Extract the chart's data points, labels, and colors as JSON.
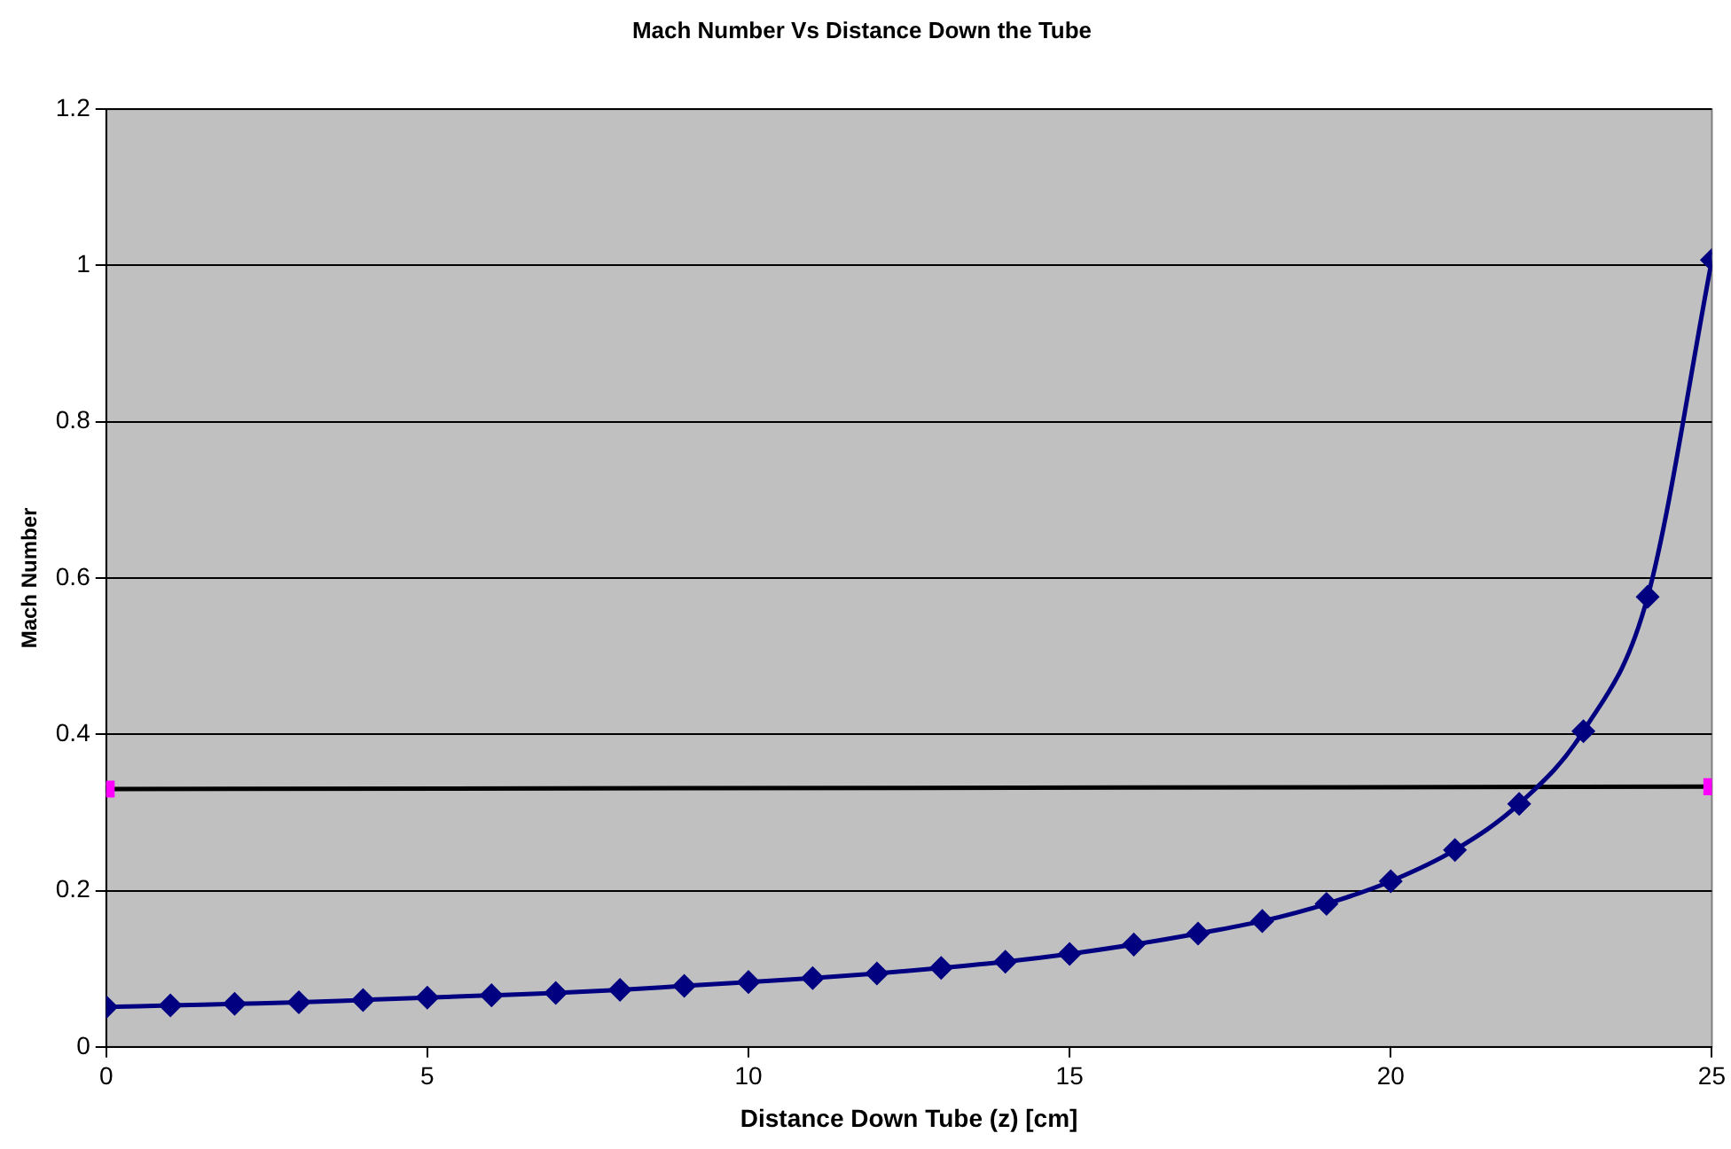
{
  "chart_data": {
    "type": "line",
    "title": "Mach Number Vs Distance Down the Tube",
    "xlabel": "Distance Down Tube (z) [cm]",
    "ylabel": "Mach Number",
    "x": [
      0,
      1,
      2,
      3,
      4,
      5,
      6,
      7,
      8,
      9,
      10,
      11,
      12,
      13,
      14,
      15,
      16,
      17,
      18,
      19,
      20,
      21,
      22,
      23,
      24,
      25
    ],
    "series": [
      {
        "color": "#000080",
        "marker": "diamond",
        "values": [
          0.051,
          0.053,
          0.055,
          0.057,
          0.06,
          0.063,
          0.066,
          0.069,
          0.073,
          0.078,
          0.083,
          0.088,
          0.094,
          0.101,
          0.109,
          0.119,
          0.131,
          0.145,
          0.161,
          0.183,
          0.212,
          0.252,
          0.311,
          0.404,
          0.576,
          1.007
        ]
      },
      {
        "type": "line",
        "x": [
          0,
          25
        ],
        "values": [
          0.33,
          0.333
        ],
        "color": "#000000",
        "colors": [
          "#ff00ff",
          "#ff00ff"
        ],
        "marker": "square"
      }
    ],
    "xlim": [
      0,
      25
    ],
    "xticks": [
      0,
      5,
      10,
      15,
      20,
      25
    ],
    "ylim": [
      0,
      1.2
    ],
    "yticks": [
      0,
      0.2,
      0.4,
      0.6,
      0.8,
      1,
      1.2
    ],
    "grid": "y"
  }
}
